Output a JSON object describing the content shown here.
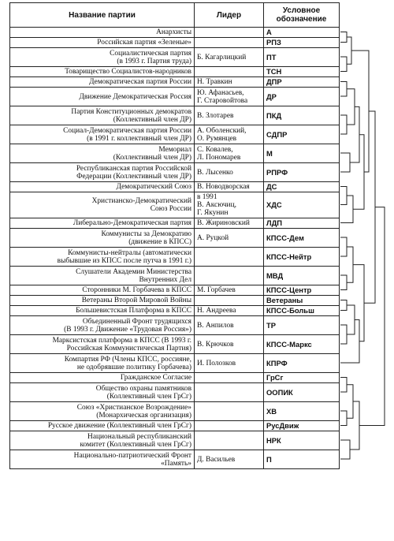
{
  "headers": {
    "party": "Название партии",
    "leader": "Лидер",
    "abbr": "Условное обозначение"
  },
  "rows": [
    {
      "party": "Анархисты",
      "leader": "",
      "abbr": "А"
    },
    {
      "party": "Российская партия «Зеленые»",
      "leader": "",
      "abbr": "РПЗ"
    },
    {
      "party": "Социалистическая партия\n(в 1993 г. Партия труда)",
      "leader": "Б. Кагарлицкий",
      "abbr": "ПТ"
    },
    {
      "party": "Товарищество Социалистов-народников",
      "leader": "",
      "abbr": "ТСН"
    },
    {
      "party": "Демократическая партия России",
      "leader": "Н. Травкин",
      "abbr": "ДПР"
    },
    {
      "party": "Движение Демократическая Россия",
      "leader": "Ю. Афанасьев,\nГ. Старовойтова",
      "abbr": "ДР"
    },
    {
      "party": "Партия Конституционных демократов\n(Коллективный член ДР)",
      "leader": "В. Злотарев",
      "abbr": "ПКД"
    },
    {
      "party": "Социал-Демократическая партия России\n(в 1991 г. коллективный член ДР)",
      "leader": "А. Оболенский,\nО. Румянцев",
      "abbr": "СДПР"
    },
    {
      "party": "Мемориал\n(Коллективный член ДР)",
      "leader": "С. Ковалев,\nЛ. Пономарев",
      "abbr": "М"
    },
    {
      "party": "Республиканская партия Российской\nФедерации (Коллективный член ДР)",
      "leader": "В. Лысенко",
      "abbr": "РПРФ"
    },
    {
      "party": "Демократический Союз",
      "leader": "В. Новодворская",
      "abbr": "ДС"
    },
    {
      "party": "Христианско-Демократический\nСоюз России",
      "leader": "в 1991\nВ. Аксючиц,\nГ. Якунин",
      "abbr": "ХДС"
    },
    {
      "party": "Либерально-Демократическая партия",
      "leader": "В. Жириновский",
      "abbr": "ЛДП"
    },
    {
      "party": "Коммунисты за Демократию\n(движение в КПСС)",
      "leader": "А. Руцкой",
      "abbr": "КПСС-Дем"
    },
    {
      "party": "Коммунисты-нейтралы (автоматически\nвыбывшие из КПСС после путча в 1991 г.)",
      "leader": "",
      "abbr": "КПСС-Нейтр"
    },
    {
      "party": "Слушатели Академии Министерства\nВнутренних Дел",
      "leader": "",
      "abbr": "МВД"
    },
    {
      "party": "Сторонники М. Горбачева в КПСС",
      "leader": "М. Горбачев",
      "abbr": "КПСС-Центр"
    },
    {
      "party": "Ветераны Второй Мировой Войны",
      "leader": "",
      "abbr": "Ветераны"
    },
    {
      "party": "Большевистская Платформа в КПСС",
      "leader": "Н. Андреева",
      "abbr": "КПСС-Больш"
    },
    {
      "party": "Объединенный Фронт трудящихся\n(В 1993 г. Движение «Трудовая Россия»)",
      "leader": "В. Анпилов",
      "abbr": "ТР"
    },
    {
      "party": "Марксистская платформа в КПСС (В 1993 г.\nРоссийская Коммунистическая Партия)",
      "leader": "В. Крючков",
      "abbr": "КПСС-Маркс"
    },
    {
      "party": "Компартия РФ (Члены КПСС, россияне,\nне одобрявшие политику Горбачева)",
      "leader": "И. Полозков",
      "abbr": "КПРФ"
    },
    {
      "party": "Гражданское Согласие",
      "leader": "",
      "abbr": "ГрСг"
    },
    {
      "party": "Общество охраны памятников\n(Коллективный член ГрСг)",
      "leader": "",
      "abbr": "ООПИК"
    },
    {
      "party": "Союз «Христианское Возрождение»\n(Монархическая организация)",
      "leader": "",
      "abbr": "ХВ"
    },
    {
      "party": "Русское движение (Коллективный член ГрСг)",
      "leader": "",
      "abbr": "РусДвиж"
    },
    {
      "party": "Национальный республиканский\nкомитет (Коллективный член ГрСг)",
      "leader": "",
      "abbr": "НРК"
    },
    {
      "party": "Национально-патриотический Фронт\n«Память»",
      "leader": "Д. Васильев",
      "abbr": "П"
    }
  ]
}
